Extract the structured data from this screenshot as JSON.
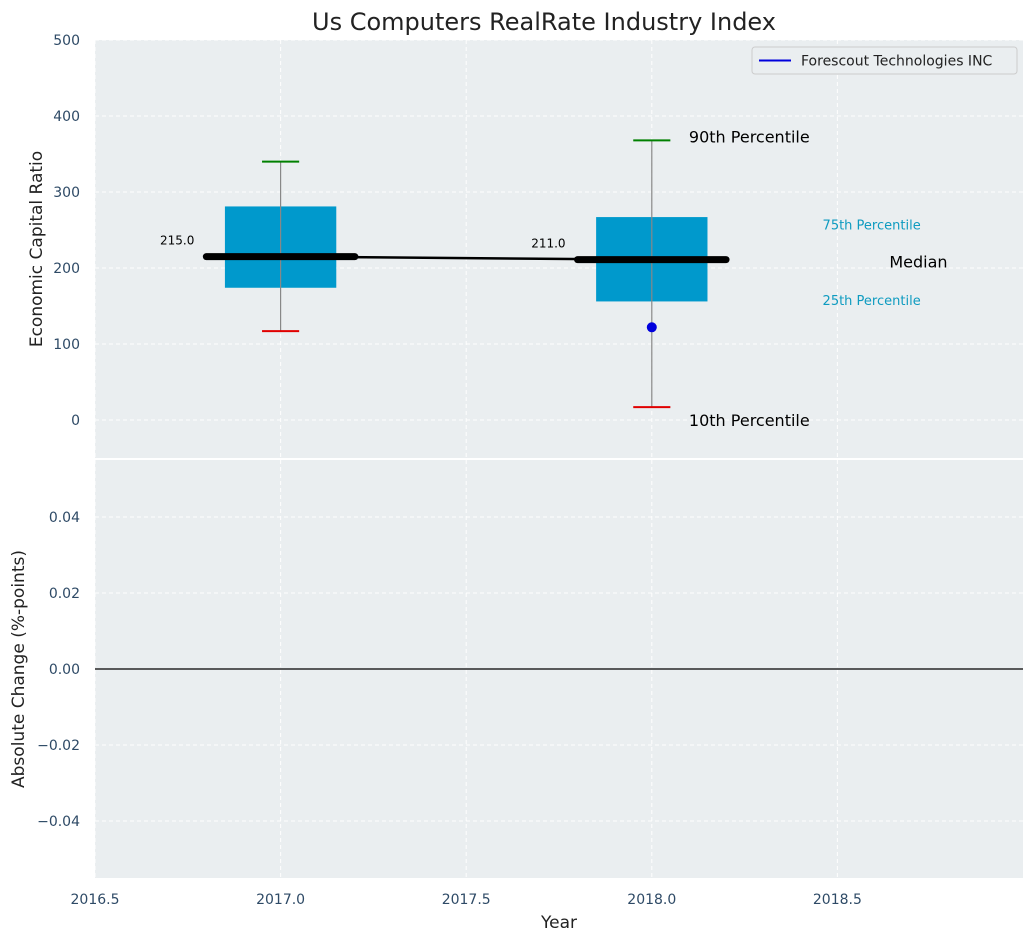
{
  "chart_data": [
    {
      "type": "box",
      "title": "Us Computers RealRate Industry Index",
      "xlabel": "",
      "ylabel": "Economic Capital Ratio",
      "ylim": [
        -50,
        500
      ],
      "xlim": [
        2016.5,
        2019.0
      ],
      "x_ticks": [
        2016.5,
        2017.0,
        2017.5,
        2018.0,
        2018.5
      ],
      "x_tick_labels": [
        "2016.5",
        "2017.0",
        "2017.5",
        "2018.0",
        "2018.5"
      ],
      "y_ticks": [
        0,
        100,
        200,
        300,
        400,
        500
      ],
      "y_tick_labels": [
        "0",
        "100",
        "200",
        "300",
        "400",
        "500"
      ],
      "grid": true,
      "legend_placement": "top-right",
      "colors": {
        "box": "#0099cc",
        "median": "#000000",
        "p90": "#008000",
        "p10": "#e00000",
        "company": "#0000dd",
        "whisker": "#888888",
        "plot_bg": "#eaeef0"
      },
      "boxes": [
        {
          "x": 2017.0,
          "p10": 117,
          "p25": 174,
          "median": 215,
          "p75": 281,
          "p90": 340,
          "median_label": "215.0"
        },
        {
          "x": 2018.0,
          "p10": 17,
          "p25": 156,
          "median": 211,
          "p75": 267,
          "p90": 368,
          "median_label": "211.0"
        }
      ],
      "median_line": {
        "x": [
          2017.0,
          2018.0
        ],
        "y": [
          215,
          211
        ]
      },
      "series": [
        {
          "name": "Forescout Technologies INC",
          "points": [
            {
              "x": 2018.0,
              "y": 122
            }
          ]
        }
      ],
      "annotations": {
        "p90": "90th Percentile",
        "p75": "75th Percentile",
        "median": "Median",
        "p25": "25th Percentile",
        "p10": "10th Percentile"
      }
    },
    {
      "type": "line",
      "xlabel": "Year",
      "ylabel": "Absolute Change (%-points)",
      "ylim": [
        -0.055,
        0.055
      ],
      "xlim": [
        2016.5,
        2019.0
      ],
      "x_ticks": [
        2016.5,
        2017.0,
        2017.5,
        2018.0,
        2018.5
      ],
      "x_tick_labels": [
        "2016.5",
        "2017.0",
        "2017.5",
        "2018.0",
        "2018.5"
      ],
      "y_ticks": [
        0.04,
        0.02,
        0.0,
        -0.02,
        -0.04
      ],
      "y_tick_labels": [
        "0.04",
        "0.02",
        "0.00",
        "−0.02",
        "−0.04"
      ],
      "grid": true,
      "reference_line_y": 0.0,
      "series": []
    }
  ]
}
